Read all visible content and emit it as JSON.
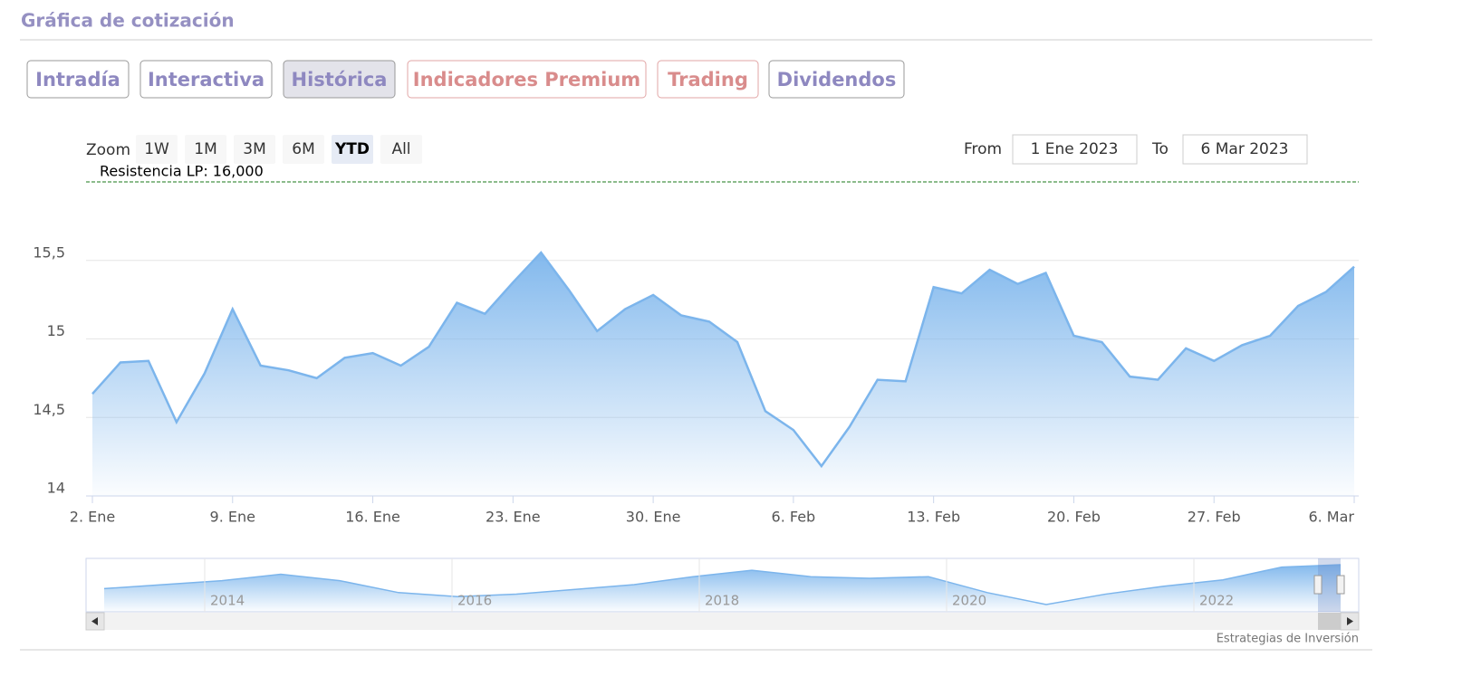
{
  "header": {
    "title": "Gráfica de cotización"
  },
  "tabs": [
    "Intradía",
    "Interactiva",
    "Histórica",
    "Indicadores Premium",
    "Trading",
    "Dividendos"
  ],
  "zoom": {
    "label": "Zoom",
    "buttons": [
      "1W",
      "1M",
      "3M",
      "6M",
      "YTD",
      "All"
    ],
    "selected": 4
  },
  "range": {
    "from_label": "From",
    "from": "1 Ene 2023",
    "to_label": "To",
    "to": "6 Mar 2023"
  },
  "chart_data": {
    "type": "area",
    "x": [
      "2023-01-02",
      "2023-01-03",
      "2023-01-04",
      "2023-01-05",
      "2023-01-06",
      "2023-01-09",
      "2023-01-10",
      "2023-01-11",
      "2023-01-12",
      "2023-01-13",
      "2023-01-16",
      "2023-01-17",
      "2023-01-18",
      "2023-01-19",
      "2023-01-20",
      "2023-01-23",
      "2023-01-24",
      "2023-01-25",
      "2023-01-26",
      "2023-01-27",
      "2023-01-30",
      "2023-01-31",
      "2023-02-01",
      "2023-02-02",
      "2023-02-03",
      "2023-02-06",
      "2023-02-07",
      "2023-02-08",
      "2023-02-09",
      "2023-02-10",
      "2023-02-13",
      "2023-02-14",
      "2023-02-15",
      "2023-02-16",
      "2023-02-17",
      "2023-02-20",
      "2023-02-21",
      "2023-02-22",
      "2023-02-23",
      "2023-02-24",
      "2023-02-27",
      "2023-02-28",
      "2023-03-01",
      "2023-03-02",
      "2023-03-03",
      "2023-03-06"
    ],
    "values": [
      14.65,
      14.85,
      14.86,
      14.47,
      14.78,
      15.19,
      14.83,
      14.8,
      14.75,
      14.88,
      14.91,
      14.83,
      14.95,
      15.23,
      15.16,
      15.36,
      15.55,
      15.31,
      15.05,
      15.19,
      15.28,
      15.15,
      15.11,
      14.98,
      14.54,
      14.42,
      14.19,
      14.44,
      14.74,
      14.73,
      15.33,
      15.29,
      15.44,
      15.35,
      15.42,
      15.02,
      14.98,
      14.76,
      14.74,
      14.94,
      14.86,
      14.96,
      15.02,
      15.21,
      15.3,
      15.46
    ],
    "color": "#7cb5ec",
    "ylim": [
      14,
      16
    ],
    "yticks": [
      14,
      {
        "value": 14.5,
        "label": "14,5"
      },
      15,
      {
        "value": 15.5,
        "label": "15,5"
      }
    ],
    "xticks": [
      {
        "value": "2023-01-02",
        "label": "2. Ene"
      },
      {
        "value": "2023-01-09",
        "label": "9. Ene"
      },
      {
        "value": "2023-01-16",
        "label": "16. Ene"
      },
      {
        "value": "2023-01-23",
        "label": "23. Ene"
      },
      {
        "value": "2023-01-30",
        "label": "30. Ene"
      },
      {
        "value": "2023-02-06",
        "label": "6. Feb"
      },
      {
        "value": "2023-02-13",
        "label": "13. Feb"
      },
      {
        "value": "2023-02-20",
        "label": "20. Feb"
      },
      {
        "value": "2023-02-27",
        "label": "27. Feb"
      },
      {
        "value": "2023-03-06",
        "label": "6. Mar"
      }
    ],
    "grid": true,
    "annotations": [
      {
        "label": "Resistencia LP: 16,000",
        "value": 16,
        "color": "#1a7a1a"
      }
    ]
  },
  "navigator": {
    "years": [
      "2014",
      "2016",
      "2018",
      "2020",
      "2022"
    ],
    "values": [
      12.5,
      13.0,
      13.5,
      14.3,
      13.5,
      12.0,
      11.5,
      11.8,
      12.4,
      13.0,
      14.0,
      14.8,
      14.0,
      13.8,
      14.0,
      12.0,
      10.5,
      11.8,
      12.8,
      13.6,
      15.2,
      15.5
    ]
  },
  "credit": "Estrategias de Inversión"
}
